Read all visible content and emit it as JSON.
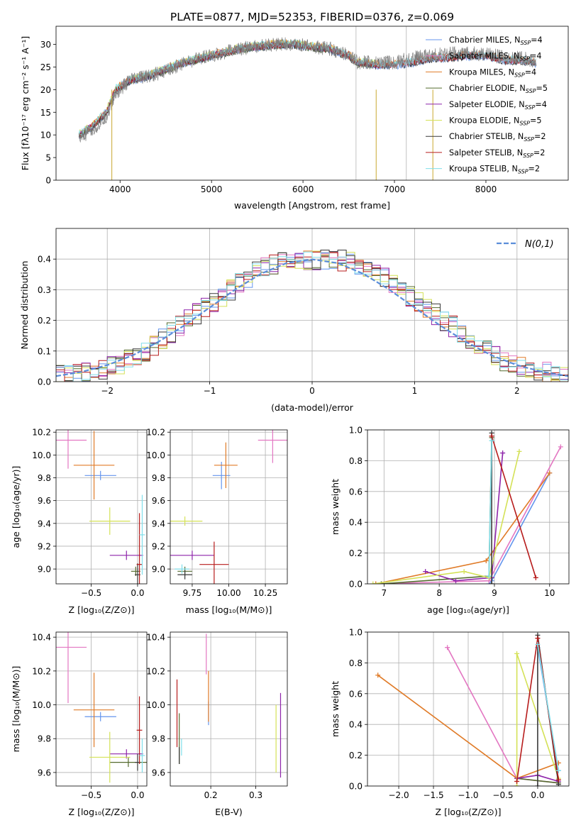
{
  "title": "PLATE=0877, MJD=52353, FIBERID=0376, z=0.069",
  "colors": {
    "chabrier_miles": "#6495ED",
    "salpeter_miles": "#E377C2",
    "kroupa_miles": "#E07B28",
    "chabrier_elodie": "#556B2F",
    "salpeter_elodie": "#8E24AA",
    "kroupa_elodie": "#D4E157",
    "chabrier_stelib": "#3A3A3A",
    "salpeter_stelib": "#B71C1C",
    "kroupa_stelib": "#80DEEA",
    "data": "#808080",
    "gaussian": "#5B8DD9"
  },
  "legend": [
    {
      "key": "chabrier_miles",
      "label": "Chabrier MILES, N",
      "sub": "SSP",
      "tail": "=4"
    },
    {
      "key": "salpeter_miles",
      "label": "Salpeter MILES, N",
      "sub": "SSP",
      "tail": "=4"
    },
    {
      "key": "kroupa_miles",
      "label": "Kroupa MILES, N",
      "sub": "SSP",
      "tail": "=4"
    },
    {
      "key": "chabrier_elodie",
      "label": "Chabrier ELODIE, N",
      "sub": "SSP",
      "tail": "=5"
    },
    {
      "key": "salpeter_elodie",
      "label": "Salpeter ELODIE, N",
      "sub": "SSP",
      "tail": "=4"
    },
    {
      "key": "kroupa_elodie",
      "label": "Kroupa ELODIE, N",
      "sub": "SSP",
      "tail": "=5"
    },
    {
      "key": "chabrier_stelib",
      "label": "Chabrier STELIB, N",
      "sub": "SSP",
      "tail": "=2"
    },
    {
      "key": "salpeter_stelib",
      "label": "Salpeter STELIB, N",
      "sub": "SSP",
      "tail": "=2"
    },
    {
      "key": "kroupa_stelib",
      "label": "Kroupa STELIB, N",
      "sub": "SSP",
      "tail": "=2"
    }
  ],
  "chart_data": [
    {
      "id": "spectrum",
      "type": "line",
      "xlabel": "wavelength [Angstrom, rest frame]",
      "ylabel": "Flux [fλ10⁻¹⁷ erg cm⁻² s⁻¹ A⁻¹]",
      "xlim": [
        3300,
        8900
      ],
      "ylim": [
        0,
        34
      ],
      "xticks": [
        4000,
        5000,
        6000,
        7000,
        8000
      ],
      "yticks": [
        0,
        5,
        10,
        15,
        20,
        25,
        30
      ],
      "x": [
        3550,
        3700,
        3850,
        3950,
        4100,
        4300,
        4500,
        4700,
        4900,
        5100,
        5300,
        5500,
        5700,
        5900,
        6100,
        6300,
        6500,
        6600,
        6800,
        7000,
        7200,
        7400,
        7600,
        7800,
        8000,
        8200,
        8400,
        8550
      ],
      "data_y": [
        9,
        11,
        14,
        19,
        22,
        23,
        24,
        26,
        27,
        28,
        29,
        29.5,
        30,
        30,
        29.5,
        29,
        27.5,
        26,
        26,
        26,
        27,
        27.5,
        28,
        28,
        28,
        27,
        27,
        26
      ],
      "model_y": [
        10,
        12,
        15,
        20,
        22,
        23,
        24.5,
        26,
        27,
        28,
        29,
        29.5,
        30,
        30,
        29.5,
        29,
        27.5,
        26,
        25.5,
        25.5,
        26,
        27,
        27,
        27.5,
        27.5,
        26.5,
        26.5,
        26
      ]
    },
    {
      "id": "residuals",
      "type": "area",
      "xlabel": "(data-model)/error",
      "ylabel": "Normed distribution",
      "xlim": [
        -2.5,
        2.5
      ],
      "ylim": [
        0,
        0.5
      ],
      "xticks": [
        -2,
        -1,
        0,
        1,
        2
      ],
      "yticks": [
        0.0,
        0.1,
        0.2,
        0.3,
        0.4
      ],
      "legend": "N(0,1)",
      "bin_width": 0.1,
      "hist_base": [
        0.02,
        0.022,
        0.025,
        0.03,
        0.035,
        0.04,
        0.05,
        0.06,
        0.07,
        0.085,
        0.1,
        0.12,
        0.14,
        0.16,
        0.18,
        0.2,
        0.22,
        0.24,
        0.26,
        0.28,
        0.3,
        0.32,
        0.34,
        0.36,
        0.37,
        0.38,
        0.39,
        0.395,
        0.4,
        0.4,
        0.4,
        0.4,
        0.4,
        0.395,
        0.39,
        0.38,
        0.37,
        0.36,
        0.34,
        0.32,
        0.3,
        0.28,
        0.26,
        0.24,
        0.22,
        0.2,
        0.18,
        0.16,
        0.14,
        0.12,
        0.1,
        0.085,
        0.07,
        0.06,
        0.05,
        0.04,
        0.035,
        0.03,
        0.025,
        0.022
      ],
      "gauss_x": [
        -2.5,
        -2.25,
        -2,
        -1.75,
        -1.5,
        -1.25,
        -1,
        -0.75,
        -0.5,
        -0.25,
        0,
        0.25,
        0.5,
        0.75,
        1,
        1.25,
        1.5,
        1.75,
        2,
        2.25,
        2.5
      ],
      "gauss_y": [
        0.018,
        0.032,
        0.054,
        0.086,
        0.13,
        0.183,
        0.242,
        0.301,
        0.352,
        0.387,
        0.399,
        0.387,
        0.352,
        0.301,
        0.242,
        0.183,
        0.13,
        0.086,
        0.054,
        0.032,
        0.018
      ]
    },
    {
      "id": "age_vs_Z",
      "type": "scatter",
      "xlabel": "Z [log₁₀(Z/Z⊙)]",
      "ylabel": "age  [log₁₀(age/yr)]",
      "xlim": [
        -0.88,
        0.1
      ],
      "ylim": [
        8.87,
        10.22
      ],
      "xticks": [
        -0.5,
        0.0
      ],
      "yticks": [
        9.0,
        9.2,
        9.4,
        9.6,
        9.8,
        10.0,
        10.2
      ],
      "points": [
        {
          "key": "chabrier_miles",
          "x": -0.4,
          "y": 9.82,
          "xerr": 0.17,
          "yerr": 0.0
        },
        {
          "key": "salpeter_miles",
          "x": -0.75,
          "y": 10.13,
          "xerr": 0.2,
          "yerr": 0.25
        },
        {
          "key": "kroupa_miles",
          "x": -0.47,
          "y": 9.91,
          "xerr": 0.22,
          "yerr": 0.3
        },
        {
          "key": "chabrier_elodie",
          "x": -0.02,
          "y": 8.98,
          "xerr": 0.05,
          "yerr": 0.0
        },
        {
          "key": "salpeter_elodie",
          "x": -0.12,
          "y": 9.12,
          "xerr": 0.18,
          "yerr": 0.0
        },
        {
          "key": "kroupa_elodie",
          "x": -0.3,
          "y": 9.42,
          "xerr": 0.22,
          "yerr": 0.12
        },
        {
          "key": "chabrier_stelib",
          "x": 0.0,
          "y": 8.95,
          "xerr": 0.03,
          "yerr": 0.1
        },
        {
          "key": "salpeter_stelib",
          "x": 0.02,
          "y": 9.04,
          "xerr": 0.03,
          "yerr": 0.45
        },
        {
          "key": "kroupa_stelib",
          "x": 0.05,
          "y": 9.3,
          "xerr": 0.03,
          "yerr": 0.35
        }
      ]
    },
    {
      "id": "age_vs_mass",
      "type": "scatter",
      "xlabel": "mass [log₁₀(M/M⊙)]",
      "ylabel": "",
      "xlim": [
        9.6,
        10.4
      ],
      "ylim": [
        8.87,
        10.22
      ],
      "xticks": [
        9.75,
        10.0,
        10.25
      ],
      "xticklabels": [
        "9.75",
        "10.00",
        "10.25"
      ],
      "yticks": [
        9.0,
        9.2,
        9.4,
        9.6,
        9.8,
        10.0,
        10.2
      ],
      "points": [
        {
          "key": "chabrier_miles",
          "x": 9.95,
          "y": 9.82,
          "xerr": 0.06,
          "yerr": 0.12
        },
        {
          "key": "salpeter_miles",
          "x": 10.3,
          "y": 10.13,
          "xerr": 0.1,
          "yerr": 0.2
        },
        {
          "key": "kroupa_miles",
          "x": 9.98,
          "y": 9.91,
          "xerr": 0.08,
          "yerr": 0.2
        },
        {
          "key": "chabrier_elodie",
          "x": 9.7,
          "y": 8.98,
          "xerr": 0.05,
          "yerr": 0.0
        },
        {
          "key": "salpeter_elodie",
          "x": 9.75,
          "y": 9.12,
          "xerr": 0.15,
          "yerr": 0.0
        },
        {
          "key": "kroupa_elodie",
          "x": 9.7,
          "y": 9.42,
          "xerr": 0.12,
          "yerr": 0.0
        },
        {
          "key": "chabrier_stelib",
          "x": 9.7,
          "y": 8.95,
          "xerr": 0.05,
          "yerr": 0.0
        },
        {
          "key": "salpeter_stelib",
          "x": 9.9,
          "y": 9.04,
          "xerr": 0.1,
          "yerr": 0.2
        },
        {
          "key": "kroupa_stelib",
          "x": 9.68,
          "y": 9.0,
          "xerr": 0.05,
          "yerr": 0.0
        }
      ]
    },
    {
      "id": "massweight_vs_age",
      "type": "line",
      "xlabel": "age  [log₁₀(age/yr)]",
      "ylabel": "mass weight",
      "xlim": [
        6.7,
        10.35
      ],
      "ylim": [
        0,
        1
      ],
      "xticks": [
        7,
        8,
        9,
        10
      ],
      "yticks": [
        0.0,
        0.2,
        0.4,
        0.6,
        0.8,
        1.0
      ],
      "series": [
        {
          "key": "chabrier_miles",
          "x": [
            8.9,
            8.95,
            10.0
          ],
          "y": [
            0.0,
            0.02,
            0.72
          ]
        },
        {
          "key": "salpeter_miles",
          "x": [
            6.85,
            8.9,
            10.2
          ],
          "y": [
            0.0,
            0.02,
            0.89
          ]
        },
        {
          "key": "kroupa_miles",
          "x": [
            6.85,
            8.85,
            10.0
          ],
          "y": [
            0.0,
            0.15,
            0.72
          ]
        },
        {
          "key": "chabrier_elodie",
          "x": [
            6.95,
            8.9,
            8.95
          ],
          "y": [
            0.0,
            0.05,
            0.95
          ]
        },
        {
          "key": "salpeter_elodie",
          "x": [
            7.75,
            8.3,
            8.95,
            9.15
          ],
          "y": [
            0.08,
            0.02,
            0.04,
            0.85
          ]
        },
        {
          "key": "kroupa_elodie",
          "x": [
            6.8,
            8.45,
            8.9,
            9.45
          ],
          "y": [
            0.0,
            0.08,
            0.04,
            0.86
          ]
        },
        {
          "key": "chabrier_stelib",
          "x": [
            8.95,
            8.95
          ],
          "y": [
            0.0,
            0.98
          ]
        },
        {
          "key": "salpeter_stelib",
          "x": [
            8.95,
            9.75
          ],
          "y": [
            0.96,
            0.04
          ]
        },
        {
          "key": "kroupa_stelib",
          "x": [
            8.9,
            8.95
          ],
          "y": [
            0.05,
            0.93
          ]
        }
      ]
    },
    {
      "id": "mass_vs_Z",
      "type": "scatter",
      "xlabel": "Z [log₁₀(Z/Z⊙)]",
      "ylabel": "mass [log₁₀(M/M⊙)]",
      "xlim": [
        -0.88,
        0.1
      ],
      "ylim": [
        9.52,
        10.43
      ],
      "xticks": [
        -0.5,
        0.0
      ],
      "yticks": [
        9.6,
        9.8,
        10.0,
        10.2,
        10.4
      ],
      "points": [
        {
          "key": "chabrier_miles",
          "x": -0.4,
          "y": 9.93,
          "xerr": 0.17,
          "yerr": 0.0
        },
        {
          "key": "salpeter_miles",
          "x": -0.75,
          "y": 10.34,
          "xerr": 0.2,
          "yerr": 0.33
        },
        {
          "key": "kroupa_miles",
          "x": -0.47,
          "y": 9.97,
          "xerr": 0.22,
          "yerr": 0.22
        },
        {
          "key": "chabrier_elodie",
          "x": -0.1,
          "y": 9.66,
          "xerr": 0.2,
          "yerr": 0.0
        },
        {
          "key": "salpeter_elodie",
          "x": -0.12,
          "y": 9.71,
          "xerr": 0.18,
          "yerr": 0.0
        },
        {
          "key": "kroupa_elodie",
          "x": -0.3,
          "y": 9.69,
          "xerr": 0.22,
          "yerr": 0.15
        },
        {
          "key": "chabrier_stelib",
          "x": 0.0,
          "y": 9.66,
          "xerr": 0.03,
          "yerr": 0.05
        },
        {
          "key": "salpeter_stelib",
          "x": 0.02,
          "y": 9.85,
          "xerr": 0.03,
          "yerr": 0.2
        },
        {
          "key": "kroupa_stelib",
          "x": 0.05,
          "y": 9.7,
          "xerr": 0.03,
          "yerr": 0.1
        }
      ]
    },
    {
      "id": "mass_vs_ebv",
      "type": "scatter",
      "xlabel": "E(B-V)",
      "ylabel": "",
      "xlim": [
        0.11,
        0.37
      ],
      "ylim": [
        9.52,
        10.43
      ],
      "xticks": [
        0.2,
        0.3
      ],
      "yticks": [
        9.6,
        9.8,
        10.0,
        10.2,
        10.4
      ],
      "points": [
        {
          "key": "chabrier_miles",
          "x": 0.195,
          "y": 9.95,
          "xerr": 0.0,
          "yerr": 0.07
        },
        {
          "key": "salpeter_miles",
          "x": 0.19,
          "y": 10.3,
          "xerr": 0.0,
          "yerr": 0.12
        },
        {
          "key": "kroupa_miles",
          "x": 0.195,
          "y": 10.05,
          "xerr": 0.0,
          "yerr": 0.15
        },
        {
          "key": "chabrier_elodie",
          "x": 0.13,
          "y": 9.8,
          "xerr": 0.0,
          "yerr": 0.15
        },
        {
          "key": "salpeter_elodie",
          "x": 0.355,
          "y": 9.82,
          "xerr": 0.0,
          "yerr": 0.25
        },
        {
          "key": "kroupa_elodie",
          "x": 0.345,
          "y": 9.8,
          "xerr": 0.0,
          "yerr": 0.2
        },
        {
          "key": "chabrier_stelib",
          "x": 0.13,
          "y": 9.7,
          "xerr": 0.0,
          "yerr": 0.05
        },
        {
          "key": "salpeter_stelib",
          "x": 0.125,
          "y": 9.95,
          "xerr": 0.0,
          "yerr": 0.2
        },
        {
          "key": "kroupa_stelib",
          "x": 0.135,
          "y": 9.75,
          "xerr": 0.0,
          "yerr": 0.05
        }
      ]
    },
    {
      "id": "massweight_vs_Z",
      "type": "line",
      "xlabel": "Z [log₁₀(Z/Z⊙)]",
      "ylabel": "mass weight",
      "xlim": [
        -2.45,
        0.45
      ],
      "ylim": [
        0,
        1
      ],
      "xticks": [
        -2.0,
        -1.5,
        -1.0,
        -0.5,
        0.0
      ],
      "yticks": [
        0.0,
        0.2,
        0.4,
        0.6,
        0.8,
        1.0
      ],
      "series": [
        {
          "key": "chabrier_miles",
          "x": [
            0.0,
            0.3
          ],
          "y": [
            0.9,
            0.1
          ]
        },
        {
          "key": "salpeter_miles",
          "x": [
            -1.3,
            -0.3,
            0.3
          ],
          "y": [
            0.9,
            0.05,
            0.02
          ]
        },
        {
          "key": "kroupa_miles",
          "x": [
            -2.3,
            -0.3,
            0.3
          ],
          "y": [
            0.72,
            0.05,
            0.15
          ]
        },
        {
          "key": "chabrier_elodie",
          "x": [
            -0.3,
            0.3
          ],
          "y": [
            0.05,
            0.02
          ]
        },
        {
          "key": "salpeter_elodie",
          "x": [
            -0.3,
            0.0,
            0.3
          ],
          "y": [
            0.05,
            0.07,
            0.03
          ]
        },
        {
          "key": "kroupa_elodie",
          "x": [
            -0.3,
            -0.3,
            0.3
          ],
          "y": [
            0.0,
            0.86,
            0.05
          ]
        },
        {
          "key": "chabrier_stelib",
          "x": [
            0.0,
            0.0,
            0.3
          ],
          "y": [
            0.0,
            0.98,
            0.01
          ]
        },
        {
          "key": "salpeter_stelib",
          "x": [
            -0.3,
            0.0,
            0.3
          ],
          "y": [
            0.03,
            0.96,
            0.04
          ]
        },
        {
          "key": "kroupa_stelib",
          "x": [
            0.0,
            0.3
          ],
          "y": [
            0.92,
            0.1
          ]
        }
      ]
    }
  ]
}
